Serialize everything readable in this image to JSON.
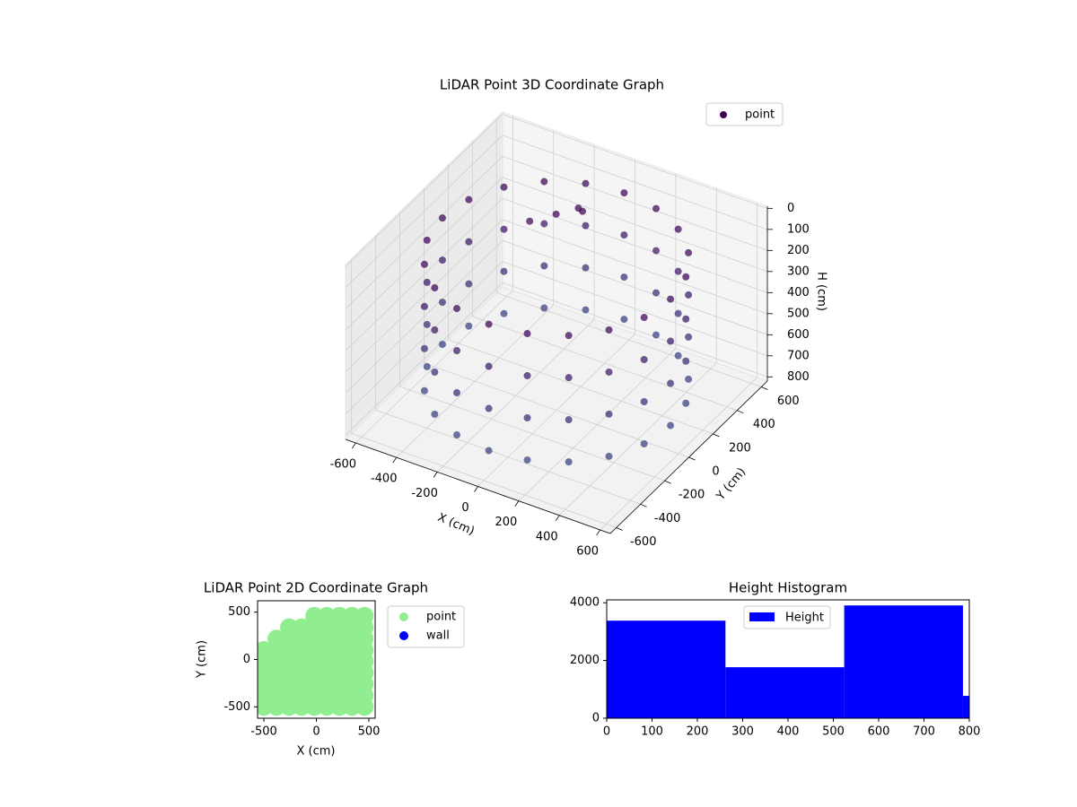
{
  "chart_data": [
    {
      "type": "scatter3d",
      "title": "LiDAR Point 3D Coordinate Graph",
      "xlabel": "X (cm)",
      "ylabel": "Y (cm)",
      "zlabel": "H (cm)",
      "xlim": [
        -650,
        650
      ],
      "ylim": [
        -650,
        650
      ],
      "zlim": [
        820,
        -10
      ],
      "xticks": [
        -600,
        -400,
        -200,
        0,
        200,
        400,
        600
      ],
      "yticks": [
        -600,
        -400,
        -200,
        0,
        200,
        400,
        600
      ],
      "zticks": [
        0,
        100,
        200,
        300,
        400,
        500,
        600,
        700,
        800
      ],
      "grid": true,
      "legend": "upper right",
      "colormap": [
        "#440154",
        "#3b528b"
      ],
      "series": [
        {
          "name": "point",
          "x": [
            560,
            533,
            453,
            329,
            173,
            0,
            -173,
            -329,
            -453,
            -533,
            -560,
            -533,
            -453,
            -329,
            -173,
            0,
            173,
            329,
            453,
            533,
            560,
            533,
            453,
            329,
            173,
            0,
            -173,
            -329,
            -453,
            -533,
            -560,
            -533,
            -453,
            -329,
            -173,
            0,
            173,
            329,
            453,
            533,
            560,
            533,
            453,
            329,
            173,
            0,
            -173,
            -329,
            -453,
            -533,
            -560,
            -533,
            -453,
            -329,
            -173,
            0,
            173,
            329,
            453,
            533,
            560,
            533,
            453,
            329,
            173,
            0,
            -173,
            -329,
            -453,
            -533,
            -560,
            -533,
            -453,
            -329,
            -173,
            0,
            173,
            329,
            453,
            533,
            -150,
            -50,
            -250,
            -100
          ],
          "y": [
            0,
            173,
            329,
            453,
            533,
            560,
            533,
            453,
            329,
            173,
            0,
            -173,
            -329,
            -453,
            -533,
            -560,
            -533,
            -453,
            -329,
            -173,
            0,
            173,
            329,
            453,
            533,
            560,
            533,
            453,
            329,
            173,
            0,
            -173,
            -329,
            -453,
            -533,
            -560,
            -533,
            -453,
            -329,
            -173,
            0,
            173,
            329,
            453,
            533,
            560,
            533,
            453,
            329,
            173,
            0,
            -173,
            -329,
            -453,
            -533,
            -560,
            -533,
            -453,
            -329,
            -173,
            0,
            173,
            329,
            453,
            533,
            560,
            533,
            453,
            329,
            173,
            0,
            -173,
            -329,
            -453,
            -533,
            -560,
            -533,
            -453,
            -329,
            -173,
            250,
            300,
            200,
            350
          ],
          "h": [
            100,
            100,
            100,
            100,
            100,
            100,
            100,
            100,
            100,
            100,
            100,
            100,
            100,
            100,
            100,
            100,
            100,
            100,
            100,
            100,
            300,
            300,
            300,
            300,
            300,
            300,
            300,
            300,
            300,
            300,
            300,
            300,
            300,
            300,
            300,
            300,
            300,
            300,
            300,
            300,
            500,
            500,
            500,
            500,
            500,
            500,
            500,
            500,
            500,
            500,
            500,
            500,
            500,
            500,
            500,
            500,
            500,
            500,
            500,
            500,
            700,
            700,
            700,
            700,
            700,
            700,
            700,
            700,
            700,
            700,
            700,
            700,
            700,
            700,
            700,
            700,
            700,
            700,
            700,
            700,
            80,
            60,
            120,
            90
          ]
        }
      ]
    },
    {
      "type": "scatter",
      "title": "LiDAR Point 2D Coordinate Graph",
      "xlabel": "X (cm)",
      "ylabel": "Y (cm)",
      "xlim": [
        -560,
        560
      ],
      "ylim": [
        -620,
        620
      ],
      "xticks": [
        -500,
        0,
        500
      ],
      "yticks": [
        -500,
        0,
        500
      ],
      "legend": "outside right",
      "series": [
        {
          "name": "point",
          "color": "#90ee90",
          "x": [
            -500,
            -500,
            -500,
            -500,
            -500,
            -500,
            -380,
            -380,
            -380,
            -380,
            -380,
            -380,
            -380,
            -260,
            -260,
            -260,
            -260,
            -260,
            -260,
            -260,
            -260,
            -140,
            -140,
            -140,
            -140,
            -140,
            -140,
            -140,
            -140,
            -20,
            -20,
            -20,
            -20,
            -20,
            -20,
            -20,
            -20,
            -20,
            100,
            100,
            100,
            100,
            100,
            100,
            100,
            100,
            100,
            220,
            220,
            220,
            220,
            220,
            220,
            220,
            220,
            220,
            340,
            340,
            340,
            340,
            340,
            340,
            340,
            340,
            340,
            460,
            460,
            460,
            460,
            460,
            460,
            460,
            460,
            460
          ],
          "y": [
            -500,
            -380,
            -260,
            -140,
            -20,
            100,
            -500,
            -380,
            -260,
            -140,
            -20,
            100,
            220,
            -500,
            -380,
            -260,
            -140,
            -20,
            100,
            220,
            340,
            -500,
            -380,
            -260,
            -140,
            -20,
            100,
            220,
            340,
            -500,
            -380,
            -260,
            -140,
            -20,
            100,
            220,
            340,
            460,
            -500,
            -380,
            -260,
            -140,
            -20,
            100,
            220,
            340,
            460,
            -500,
            -380,
            -260,
            -140,
            -20,
            100,
            220,
            340,
            460,
            -500,
            -380,
            -260,
            -140,
            -20,
            100,
            220,
            340,
            460,
            -500,
            -380,
            -260,
            -140,
            -20,
            100,
            220,
            340,
            460
          ]
        },
        {
          "name": "wall",
          "color": "#0000ff",
          "x": [],
          "y": []
        }
      ]
    },
    {
      "type": "histogram",
      "title": "Height Histogram",
      "xlim": [
        0,
        800
      ],
      "ylim": [
        0,
        4100
      ],
      "xticks": [
        0,
        100,
        200,
        300,
        400,
        500,
        600,
        700,
        800
      ],
      "yticks": [
        0,
        2000,
        4000
      ],
      "legend": "upper center",
      "series": [
        {
          "name": "Height",
          "color": "#0000ff",
          "bins": [
            0,
            262,
            524,
            786,
            800
          ],
          "counts": [
            3380,
            1767,
            3907,
            775
          ]
        }
      ]
    }
  ]
}
